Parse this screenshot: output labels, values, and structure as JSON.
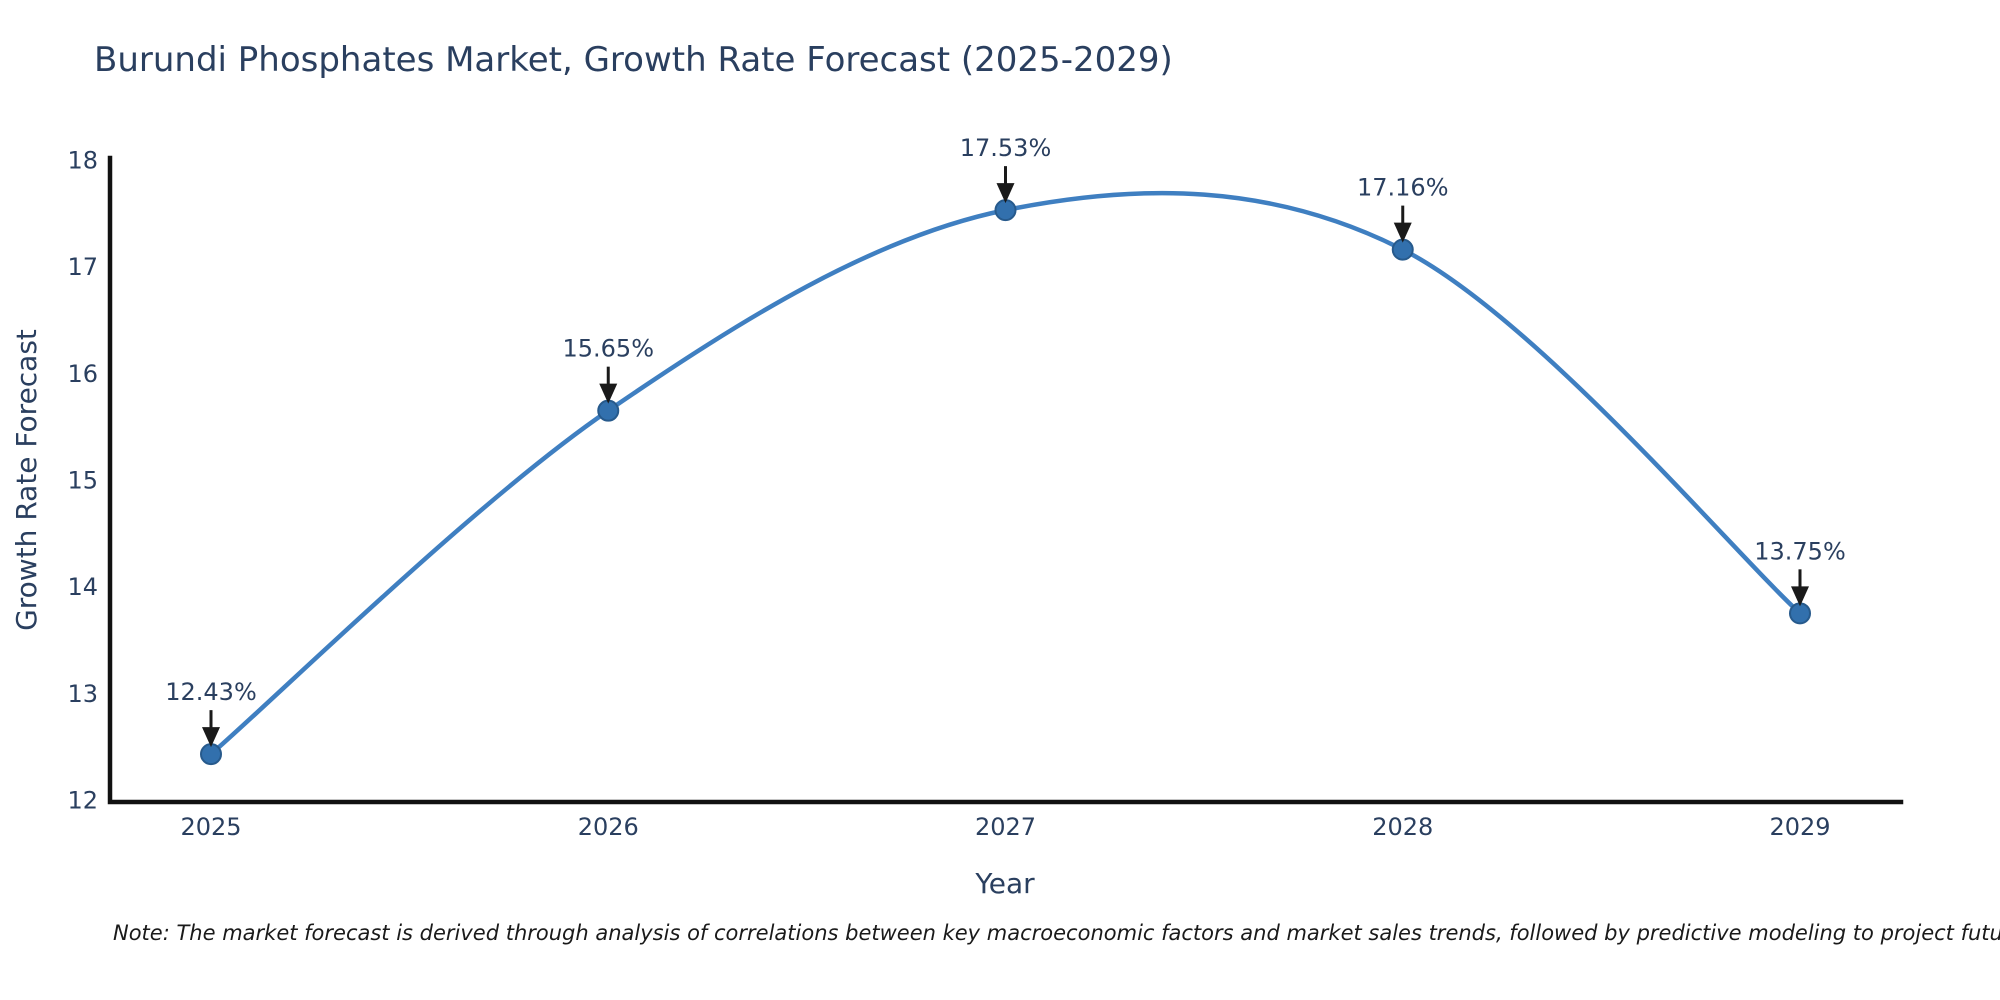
{
  "title": "Burundi Phosphates Market, Growth Rate Forecast (2025-2029)",
  "note": "Note: The market forecast is derived through analysis of correlations between key macroeconomic factors and market sales trends, followed by predictive modeling to project future sales",
  "chart_data": {
    "type": "line",
    "line_shape": "spline",
    "categories": [
      "2025",
      "2026",
      "2027",
      "2028",
      "2029"
    ],
    "values": [
      12.43,
      15.65,
      17.53,
      17.16,
      13.75
    ],
    "point_labels": [
      "12.43%",
      "15.65%",
      "17.53%",
      "17.16%",
      "13.75%"
    ],
    "title": "Burundi Phosphates Market, Growth Rate Forecast (2025-2029)",
    "xlabel": "Year",
    "ylabel": "Growth Rate Forecast",
    "ylim": [
      12,
      18
    ],
    "yticks": [
      12,
      13,
      14,
      15,
      16,
      17,
      18
    ],
    "grid": false,
    "legend": "none",
    "annotations_have_arrows": true,
    "colors": {
      "line": "#3f7fc1",
      "marker_fill": "#3270ad",
      "marker_outline": "#275a8c",
      "axis_line": "#111111",
      "arrow": "#1a1a1a",
      "title_text": "#2a3f5f",
      "tick_text": "#2a3f5f",
      "background": "#ffffff"
    }
  }
}
